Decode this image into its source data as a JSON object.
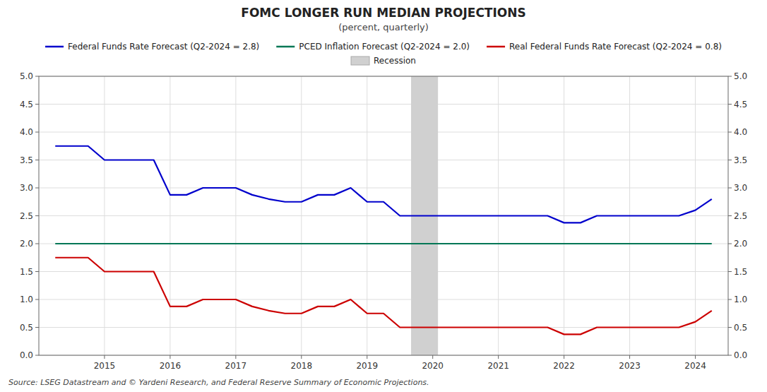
{
  "chart_data": {
    "type": "line",
    "title": "FOMC LONGER RUN MEDIAN PROJECTIONS",
    "subtitle": "(percent, quarterly)",
    "source": "Source: LSEG Datastream and © Yardeni Research, and Federal Reserve Summary of Economic Projections.",
    "x": [
      2014.25,
      2014.5,
      2014.75,
      2015.0,
      2015.25,
      2015.5,
      2015.75,
      2016.0,
      2016.25,
      2016.5,
      2016.75,
      2017.0,
      2017.25,
      2017.5,
      2017.75,
      2018.0,
      2018.25,
      2018.5,
      2018.75,
      2019.0,
      2019.25,
      2019.5,
      2019.67,
      2020.08,
      2020.25,
      2020.5,
      2020.75,
      2021.0,
      2021.25,
      2021.5,
      2021.75,
      2022.0,
      2022.25,
      2022.5,
      2022.75,
      2023.0,
      2023.25,
      2023.5,
      2023.75,
      2024.0,
      2024.25
    ],
    "series": [
      {
        "name": "Federal Funds Rate Forecast (Q2-2024 = 2.8)",
        "color": "#0000cc",
        "values": [
          3.75,
          3.75,
          3.75,
          3.5,
          3.5,
          3.5,
          3.5,
          2.875,
          2.875,
          3.0,
          3.0,
          3.0,
          2.875,
          2.8,
          2.75,
          2.75,
          2.875,
          2.875,
          3.0,
          2.75,
          2.75,
          2.5,
          2.5,
          2.5,
          2.5,
          2.5,
          2.5,
          2.5,
          2.5,
          2.5,
          2.5,
          2.375,
          2.375,
          2.5,
          2.5,
          2.5,
          2.5,
          2.5,
          2.5,
          2.6,
          2.8
        ]
      },
      {
        "name": "PCED Inflation Forecast (Q2-2024 = 2.0)",
        "color": "#007755",
        "values": [
          2.0,
          2.0,
          2.0,
          2.0,
          2.0,
          2.0,
          2.0,
          2.0,
          2.0,
          2.0,
          2.0,
          2.0,
          2.0,
          2.0,
          2.0,
          2.0,
          2.0,
          2.0,
          2.0,
          2.0,
          2.0,
          2.0,
          2.0,
          2.0,
          2.0,
          2.0,
          2.0,
          2.0,
          2.0,
          2.0,
          2.0,
          2.0,
          2.0,
          2.0,
          2.0,
          2.0,
          2.0,
          2.0,
          2.0,
          2.0,
          2.0
        ]
      },
      {
        "name": "Real Federal Funds Rate Forecast (Q2-2024 = 0.8)",
        "color": "#cc0000",
        "values": [
          1.75,
          1.75,
          1.75,
          1.5,
          1.5,
          1.5,
          1.5,
          0.875,
          0.875,
          1.0,
          1.0,
          1.0,
          0.875,
          0.8,
          0.75,
          0.75,
          0.875,
          0.875,
          1.0,
          0.75,
          0.75,
          0.5,
          0.5,
          0.5,
          0.5,
          0.5,
          0.5,
          0.5,
          0.5,
          0.5,
          0.5,
          0.375,
          0.375,
          0.5,
          0.5,
          0.5,
          0.5,
          0.5,
          0.5,
          0.6,
          0.8
        ]
      }
    ],
    "shaded_regions": [
      {
        "name": "Recession",
        "color": "#d0d0d0",
        "x": [
          2019.67,
          2020.08
        ]
      }
    ],
    "xlim": [
      2014.0,
      2024.5
    ],
    "xticks": [
      2015,
      2016,
      2017,
      2018,
      2019,
      2020,
      2021,
      2022,
      2023,
      2024
    ],
    "ylim": [
      0.0,
      5.0
    ],
    "yticks": [
      {
        "value": 0.0,
        "label": "0.0"
      },
      0.5,
      {
        "value": 1.0,
        "label": "1.0"
      },
      1.5,
      {
        "value": 2.0,
        "label": "2.0"
      },
      2.5,
      {
        "value": 3.0,
        "label": "3.0"
      },
      3.5,
      {
        "value": 4.0,
        "label": "4.0"
      },
      4.5,
      {
        "value": 5.0,
        "label": "5.0"
      }
    ],
    "y2lim": [
      0.0,
      5.0
    ],
    "y2ticks": [
      {
        "value": 0.0,
        "label": "0.0"
      },
      0.5,
      {
        "value": 1.0,
        "label": "1.0"
      },
      1.5,
      {
        "value": 2.0,
        "label": "2.0"
      },
      2.5,
      {
        "value": 3.0,
        "label": "3.0"
      },
      3.5,
      {
        "value": 4.0,
        "label": "4.0"
      },
      4.5,
      {
        "value": 5.0,
        "label": "5.0"
      }
    ],
    "grid": true,
    "legend": "top"
  }
}
